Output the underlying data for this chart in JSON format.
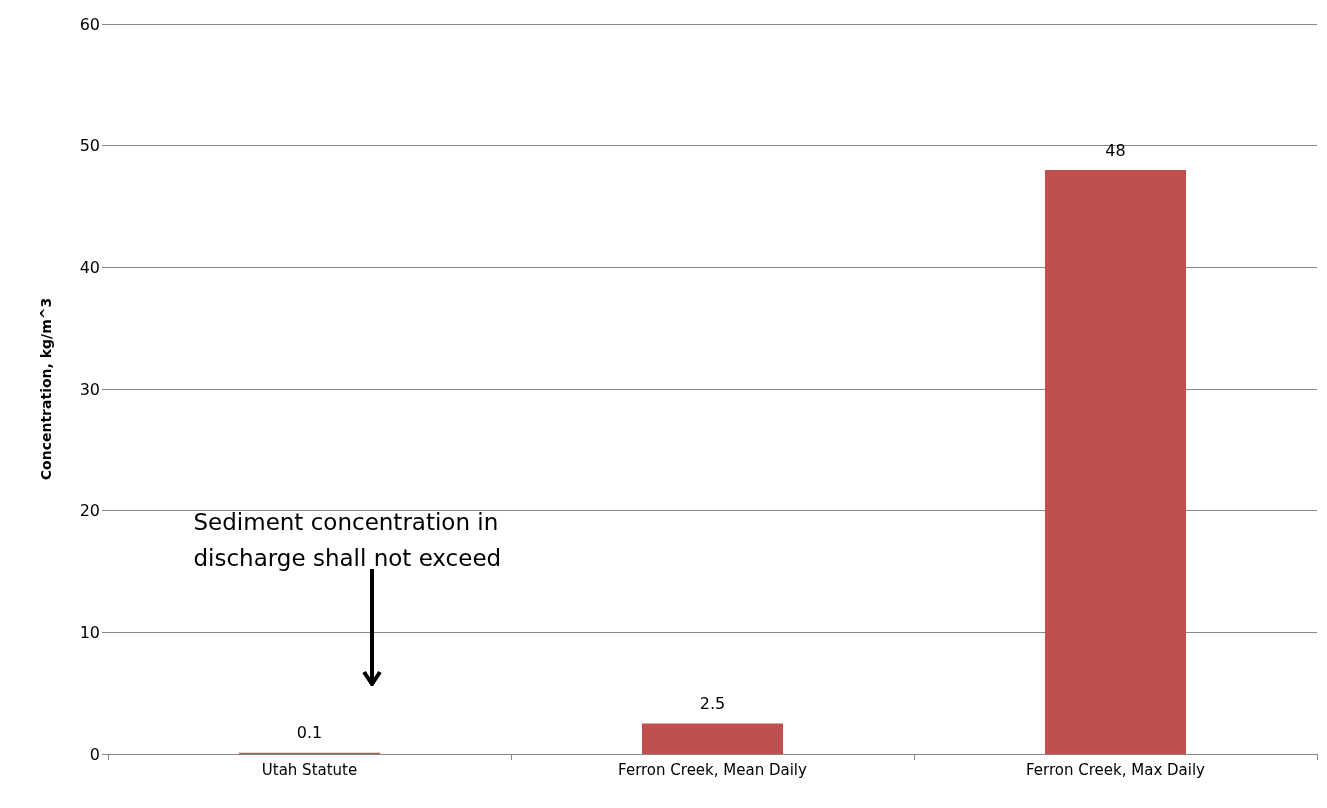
{
  "chart_data": {
    "type": "bar",
    "ylabel": "Concentration, kg/m^3",
    "categories": [
      "Utah Statute",
      "Ferron Creek, Mean Daily",
      "Ferron Creek, Max Daily"
    ],
    "series": [
      {
        "color": "#c0504d",
        "values": [
          0.1,
          2.5,
          48
        ]
      }
    ],
    "ylim": [
      0,
      60
    ],
    "yticks": [
      0,
      10,
      20,
      30,
      40,
      50,
      60
    ],
    "grid": "y",
    "data_labels": true,
    "annotations": [
      "Sediment concentration in\ndischarge shall not exceed"
    ]
  }
}
